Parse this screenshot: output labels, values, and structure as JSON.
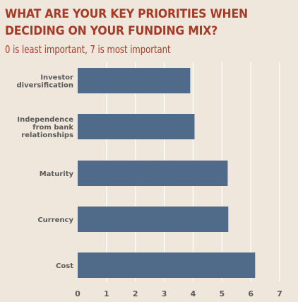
{
  "header": {
    "title": "WHAT ARE YOUR KEY PRIORITIES WHEN DECIDING ON YOUR FUNDING MIX?",
    "subtitle": "0 is least important, 7 is most important"
  },
  "colors": {
    "background": "#efe7dc",
    "bar": "#506a89",
    "title": "#a53a26",
    "grid": "#ffffff",
    "label": "#5a5a5a"
  },
  "chart_data": {
    "type": "bar",
    "orientation": "horizontal",
    "categories": [
      [
        "Investor",
        "diversification"
      ],
      [
        "Independence",
        "from bank",
        "relationships"
      ],
      [
        "Maturity"
      ],
      [
        "Currency"
      ],
      [
        "Cost"
      ]
    ],
    "values": [
      3.9,
      4.05,
      5.2,
      5.22,
      6.15
    ],
    "xlim": [
      0,
      7
    ],
    "xticks": [
      "0",
      "1",
      "2",
      "3",
      "4",
      "5",
      "6",
      "7"
    ],
    "grid": true,
    "title": "WHAT ARE YOUR KEY PRIORITIES WHEN DECIDING ON YOUR FUNDING MIX?",
    "subtitle": "0 is least important, 7 is most important"
  }
}
